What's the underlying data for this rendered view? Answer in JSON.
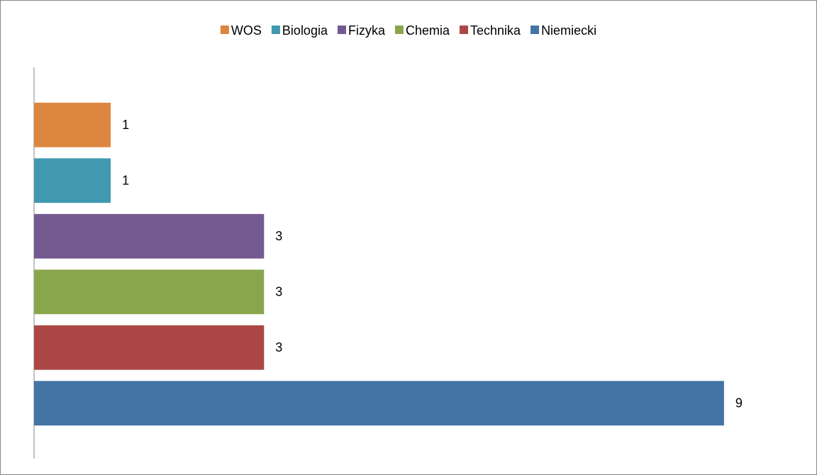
{
  "chart_data": {
    "type": "barh",
    "categories": [
      null
    ],
    "series": [
      {
        "name": "WOS",
        "color": "#dd8640",
        "values": [
          1
        ]
      },
      {
        "name": "Biologia",
        "color": "#4099b0",
        "values": [
          1
        ]
      },
      {
        "name": "Fizyka",
        "color": "#72598f",
        "values": [
          3
        ]
      },
      {
        "name": "Chemia",
        "color": "#8aa64d",
        "values": [
          3
        ]
      },
      {
        "name": "Technika",
        "color": "#aa4745",
        "values": [
          3
        ]
      },
      {
        "name": "Niemiecki",
        "color": "#4473a5",
        "values": [
          9
        ]
      }
    ],
    "xlim": [
      0,
      10
    ],
    "legend": "top"
  }
}
